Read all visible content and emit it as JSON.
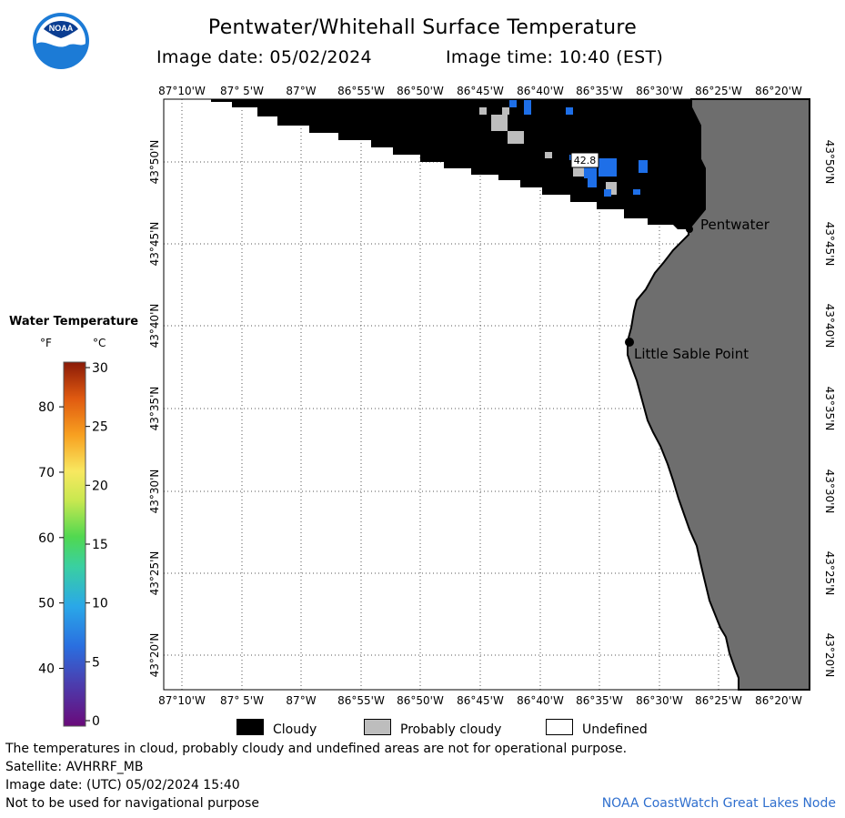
{
  "header": {
    "title": "Pentwater/Whitehall Surface Temperature",
    "image_date": "Image date: 05/02/2024",
    "image_time": "Image time: 10:40 (EST)"
  },
  "logo": {
    "text": "NOAA"
  },
  "map": {
    "lon_labels": [
      "87°10'W",
      "87° 5'W",
      "87°W",
      "86°55'W",
      "86°50'W",
      "86°45'W",
      "86°40'W",
      "86°35'W",
      "86°30'W",
      "86°25'W",
      "86°20'W"
    ],
    "lat_labels": [
      "43°50'N",
      "43°45'N",
      "43°40'N",
      "43°35'N",
      "43°30'N",
      "43°25'N",
      "43°20'N"
    ],
    "places": [
      {
        "name": "Pentwater"
      },
      {
        "name": "Little Sable Point"
      }
    ],
    "temperature_labels": [
      "42.8"
    ],
    "colors": {
      "land": "#6e6e6e",
      "cloud": "#000000",
      "probably_cloudy": "#bdbdbd",
      "undefined": "#ffffff",
      "cold_water": "#1e6fe8"
    }
  },
  "legend": {
    "title": "Water Temperature",
    "unit_f": "°F",
    "unit_c": "°C",
    "f_ticks": [
      "80",
      "70",
      "60",
      "50",
      "40"
    ],
    "c_ticks": [
      "30",
      "25",
      "20",
      "15",
      "10",
      "5",
      "0"
    ],
    "scale_c_min": 0,
    "scale_c_max": 30
  },
  "key": {
    "cloudy": "Cloudy",
    "probably_cloudy": "Probably cloudy",
    "undefined": "Undefined"
  },
  "footer": {
    "line1": "The temperatures in cloud, probably cloudy and undefined areas are not for operational purpose.",
    "line2": "Satellite: AVHRRF_MB",
    "line3": "Image date: (UTC) 05/02/2024  15:40",
    "line4": "Not to be used for navigational purpose",
    "credit": "NOAA CoastWatch Great Lakes Node"
  }
}
